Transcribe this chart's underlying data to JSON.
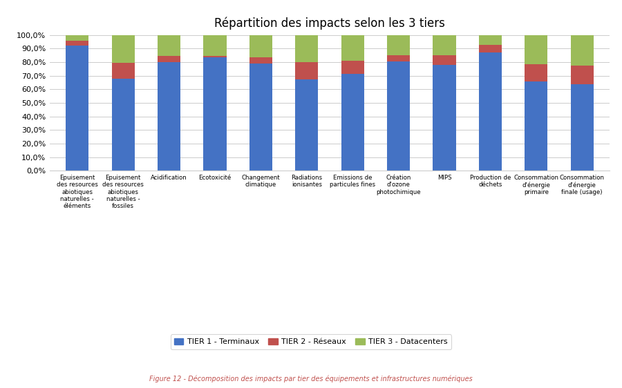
{
  "title": "Répartition des impacts selon les 3 tiers",
  "caption": "Figure 12 - Décomposition des impacts par tier des équipements et infrastructures numériques",
  "categories": [
    "Epuisement\ndes resources\nabiotiques\nnaturelles -\néléments",
    "Epuisement\ndes resources\nabiotiques\nnaturelles -\nfossiles",
    "Acidification",
    "Ecotoxicité",
    "Changement\nclimatique",
    "Radiations\nionisantes",
    "Emissions de\nparticules fines",
    "Création\nd'ozone\nphotochimique",
    "MIPS",
    "Production de\ndéchets",
    "Consommation\nd'énergie\nprimaire",
    "Consommation\nd'énergie\nfinale (usage)"
  ],
  "tier1": [
    92.0,
    68.0,
    80.0,
    83.5,
    79.0,
    67.0,
    71.5,
    80.5,
    78.0,
    87.0,
    65.5,
    63.5
  ],
  "tier2": [
    3.5,
    11.5,
    4.5,
    1.0,
    4.5,
    13.0,
    9.5,
    4.5,
    7.0,
    5.5,
    13.0,
    14.0
  ],
  "tier3": [
    4.5,
    20.5,
    15.5,
    15.5,
    16.5,
    20.0,
    19.0,
    15.0,
    15.0,
    7.5,
    21.5,
    22.5
  ],
  "colors": {
    "tier1": "#4472C4",
    "tier2": "#C0504D",
    "tier3": "#9BBB59"
  },
  "legend_labels": [
    "TIER 1 - Terminaux",
    "TIER 2 - Réseaux",
    "TIER 3 - Datacenters"
  ],
  "ylim": [
    0,
    100
  ],
  "ytick_labels": [
    "0,0%",
    "10,0%",
    "20,0%",
    "30,0%",
    "40,0%",
    "50,0%",
    "60,0%",
    "70,0%",
    "80,0%",
    "90,0%",
    "100,0%"
  ],
  "ytick_values": [
    0,
    10,
    20,
    30,
    40,
    50,
    60,
    70,
    80,
    90,
    100
  ],
  "background_color": "#FFFFFF",
  "title_fontsize": 12,
  "caption_color": "#C0504D",
  "caption_fontsize": 7
}
